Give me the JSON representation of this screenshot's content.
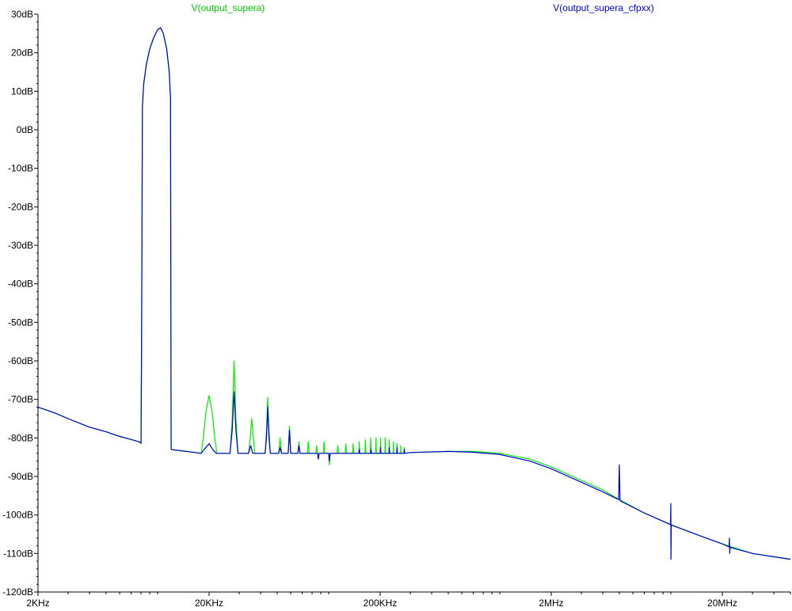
{
  "chart_data": {
    "type": "line",
    "title": "",
    "xlabel": "",
    "ylabel": "",
    "xscale": "log",
    "xlim": [
      2000,
      50000000
    ],
    "ylim": [
      -120,
      30
    ],
    "grid": false,
    "legend_position": "top",
    "x_ticks": [
      {
        "value": 2000,
        "label": "2KHz"
      },
      {
        "value": 20000,
        "label": "20KHz"
      },
      {
        "value": 200000,
        "label": "200KHz"
      },
      {
        "value": 2000000,
        "label": "2MHz"
      },
      {
        "value": 20000000,
        "label": "20MHz"
      }
    ],
    "y_ticks": [
      {
        "value": 30,
        "label": "30dB"
      },
      {
        "value": 20,
        "label": "20dB"
      },
      {
        "value": 10,
        "label": "10dB"
      },
      {
        "value": 0,
        "label": "0dB"
      },
      {
        "value": -10,
        "label": "-10dB"
      },
      {
        "value": -20,
        "label": "-20dB"
      },
      {
        "value": -30,
        "label": "-30dB"
      },
      {
        "value": -40,
        "label": "-40dB"
      },
      {
        "value": -50,
        "label": "-50dB"
      },
      {
        "value": -60,
        "label": "-60dB"
      },
      {
        "value": -70,
        "label": "-70dB"
      },
      {
        "value": -80,
        "label": "-80dB"
      },
      {
        "value": -90,
        "label": "-90dB"
      },
      {
        "value": -100,
        "label": "-100dB"
      },
      {
        "value": -110,
        "label": "-110dB"
      },
      {
        "value": -120,
        "label": "-120dB"
      }
    ],
    "series": [
      {
        "name": "V(output_supera)",
        "color": "#00ee00",
        "points": [
          [
            2000,
            -72
          ],
          [
            2500,
            -73.5
          ],
          [
            3000,
            -75
          ],
          [
            4000,
            -77.2
          ],
          [
            5000,
            -78.4
          ],
          [
            6000,
            -79.6
          ],
          [
            7000,
            -80.4
          ],
          [
            7800,
            -81
          ],
          [
            8000,
            -81.4
          ],
          [
            8050,
            -60
          ],
          [
            8100,
            -30
          ],
          [
            8150,
            6
          ],
          [
            8300,
            12
          ],
          [
            8600,
            17
          ],
          [
            9000,
            21
          ],
          [
            9500,
            24
          ],
          [
            10000,
            26
          ],
          [
            10400,
            26.5
          ],
          [
            10800,
            25
          ],
          [
            11300,
            21
          ],
          [
            11700,
            15
          ],
          [
            11900,
            8
          ],
          [
            11950,
            -40
          ],
          [
            12000,
            -83
          ],
          [
            13500,
            -83.3
          ],
          [
            16000,
            -83.7
          ],
          [
            18000,
            -84
          ],
          [
            18500,
            -80
          ],
          [
            19200,
            -73
          ],
          [
            20000,
            -69
          ],
          [
            20800,
            -73
          ],
          [
            21600,
            -80
          ],
          [
            22200,
            -84
          ],
          [
            26500,
            -84
          ],
          [
            27300,
            -75
          ],
          [
            28000,
            -60
          ],
          [
            28700,
            -75
          ],
          [
            29500,
            -84
          ],
          [
            34000,
            -84
          ],
          [
            34800,
            -80
          ],
          [
            35500,
            -75
          ],
          [
            36300,
            -80
          ],
          [
            37000,
            -84
          ],
          [
            42500,
            -84
          ],
          [
            43300,
            -78
          ],
          [
            44000,
            -69.5
          ],
          [
            44800,
            -78
          ],
          [
            45600,
            -84
          ],
          [
            51000,
            -84
          ],
          [
            52000,
            -80
          ],
          [
            53000,
            -84
          ],
          [
            58000,
            -84
          ],
          [
            59000,
            -77
          ],
          [
            60000,
            -84
          ],
          [
            66000,
            -84
          ],
          [
            67000,
            -81
          ],
          [
            68000,
            -84
          ],
          [
            75000,
            -84
          ],
          [
            76000,
            -81
          ],
          [
            77000,
            -84
          ],
          [
            84000,
            -84
          ],
          [
            85000,
            -82
          ],
          [
            86000,
            -84
          ],
          [
            93000,
            -84
          ],
          [
            94000,
            -81
          ],
          [
            95000,
            -84
          ],
          [
            100000,
            -84
          ],
          [
            101000,
            -87
          ],
          [
            102000,
            -84
          ],
          [
            112000,
            -84
          ],
          [
            113000,
            -82
          ],
          [
            114000,
            -84
          ],
          [
            125000,
            -84
          ],
          [
            126000,
            -81.5
          ],
          [
            127000,
            -84
          ],
          [
            138000,
            -84
          ],
          [
            139000,
            -81.5
          ],
          [
            140000,
            -84
          ],
          [
            150000,
            -84
          ],
          [
            151000,
            -81
          ],
          [
            152000,
            -84
          ],
          [
            163000,
            -84
          ],
          [
            164000,
            -80.5
          ],
          [
            165000,
            -84
          ],
          [
            175000,
            -84
          ],
          [
            176000,
            -80
          ],
          [
            177000,
            -84
          ],
          [
            188000,
            -84
          ],
          [
            189000,
            -80
          ],
          [
            190000,
            -84
          ],
          [
            200000,
            -84
          ],
          [
            201000,
            -80
          ],
          [
            202000,
            -84
          ],
          [
            213000,
            -84
          ],
          [
            214000,
            -80
          ],
          [
            215000,
            -84
          ],
          [
            225000,
            -84
          ],
          [
            226000,
            -80.5
          ],
          [
            227000,
            -84
          ],
          [
            238000,
            -84
          ],
          [
            239000,
            -81
          ],
          [
            240000,
            -84
          ],
          [
            250000,
            -84
          ],
          [
            251000,
            -81.5
          ],
          [
            252000,
            -84
          ],
          [
            263000,
            -84
          ],
          [
            264000,
            -82
          ],
          [
            265000,
            -84
          ],
          [
            275000,
            -84
          ],
          [
            276000,
            -82.5
          ],
          [
            277000,
            -84
          ],
          [
            300000,
            -83.8
          ],
          [
            500000,
            -83.5
          ],
          [
            700000,
            -83.5
          ],
          [
            1000000,
            -84
          ],
          [
            1500000,
            -85.5
          ],
          [
            2000000,
            -87.5
          ],
          [
            3000000,
            -91
          ],
          [
            4000000,
            -93.5
          ],
          [
            5000000,
            -96
          ],
          [
            7000000,
            -99.5
          ],
          [
            10000000,
            -102.5
          ],
          [
            15000000,
            -105.5
          ],
          [
            20000000,
            -107.5
          ],
          [
            30000000,
            -110
          ],
          [
            50000000,
            -111.5
          ]
        ]
      },
      {
        "name": "V(output_supera_cfpxx)",
        "color": "#0000cc",
        "points": [
          [
            2000,
            -72
          ],
          [
            2500,
            -73.5
          ],
          [
            3000,
            -75
          ],
          [
            4000,
            -77.2
          ],
          [
            5000,
            -78.4
          ],
          [
            6000,
            -79.6
          ],
          [
            7000,
            -80.4
          ],
          [
            7800,
            -81
          ],
          [
            8000,
            -81.4
          ],
          [
            8050,
            -60
          ],
          [
            8100,
            -30
          ],
          [
            8150,
            6
          ],
          [
            8300,
            12
          ],
          [
            8600,
            17
          ],
          [
            9000,
            21
          ],
          [
            9500,
            24
          ],
          [
            10000,
            26
          ],
          [
            10400,
            26.5
          ],
          [
            10800,
            25
          ],
          [
            11300,
            21
          ],
          [
            11700,
            15
          ],
          [
            11900,
            8
          ],
          [
            11950,
            -40
          ],
          [
            12000,
            -83
          ],
          [
            13500,
            -83.3
          ],
          [
            16000,
            -83.7
          ],
          [
            18000,
            -84
          ],
          [
            18700,
            -83
          ],
          [
            20000,
            -81.5
          ],
          [
            21000,
            -83
          ],
          [
            22000,
            -84
          ],
          [
            26500,
            -84
          ],
          [
            27300,
            -78
          ],
          [
            28000,
            -68
          ],
          [
            28700,
            -78
          ],
          [
            29500,
            -84
          ],
          [
            34000,
            -84
          ],
          [
            35000,
            -82
          ],
          [
            36000,
            -84
          ],
          [
            42500,
            -84
          ],
          [
            43300,
            -80
          ],
          [
            44000,
            -72
          ],
          [
            44800,
            -80
          ],
          [
            45600,
            -84
          ],
          [
            51000,
            -84
          ],
          [
            52000,
            -82.5
          ],
          [
            53000,
            -84
          ],
          [
            58000,
            -84
          ],
          [
            59000,
            -78
          ],
          [
            60000,
            -84
          ],
          [
            66000,
            -84
          ],
          [
            67000,
            -82
          ],
          [
            68000,
            -84
          ],
          [
            86000,
            -84
          ],
          [
            87000,
            -85.5
          ],
          [
            88000,
            -84
          ],
          [
            100000,
            -84
          ],
          [
            101000,
            -86
          ],
          [
            102000,
            -84
          ],
          [
            150000,
            -84
          ],
          [
            151000,
            -83
          ],
          [
            152000,
            -84
          ],
          [
            176000,
            -84
          ],
          [
            177000,
            -83
          ],
          [
            178000,
            -84
          ],
          [
            200000,
            -84
          ],
          [
            201000,
            -82.5
          ],
          [
            202000,
            -84
          ],
          [
            225000,
            -84
          ],
          [
            226000,
            -82.5
          ],
          [
            227000,
            -84
          ],
          [
            250000,
            -84
          ],
          [
            251000,
            -82.5
          ],
          [
            252000,
            -84
          ],
          [
            276000,
            -84
          ],
          [
            277000,
            -83
          ],
          [
            278000,
            -84
          ],
          [
            300000,
            -83.8
          ],
          [
            500000,
            -83.5
          ],
          [
            700000,
            -83.7
          ],
          [
            1000000,
            -84.3
          ],
          [
            1500000,
            -86
          ],
          [
            2000000,
            -88
          ],
          [
            3000000,
            -91.5
          ],
          [
            4000000,
            -94
          ],
          [
            4950000,
            -96
          ],
          [
            5000000,
            -87
          ],
          [
            5050000,
            -96.3
          ],
          [
            7000000,
            -99.5
          ],
          [
            9950000,
            -102.5
          ],
          [
            10000000,
            -97
          ],
          [
            10020000,
            -111.5
          ],
          [
            10060000,
            -102.6
          ],
          [
            15000000,
            -105.5
          ],
          [
            20000000,
            -107.5
          ],
          [
            21900000,
            -108.3
          ],
          [
            22000000,
            -106
          ],
          [
            22100000,
            -110
          ],
          [
            22200000,
            -108.4
          ],
          [
            30000000,
            -110
          ],
          [
            50000000,
            -111.5
          ]
        ]
      }
    ]
  }
}
